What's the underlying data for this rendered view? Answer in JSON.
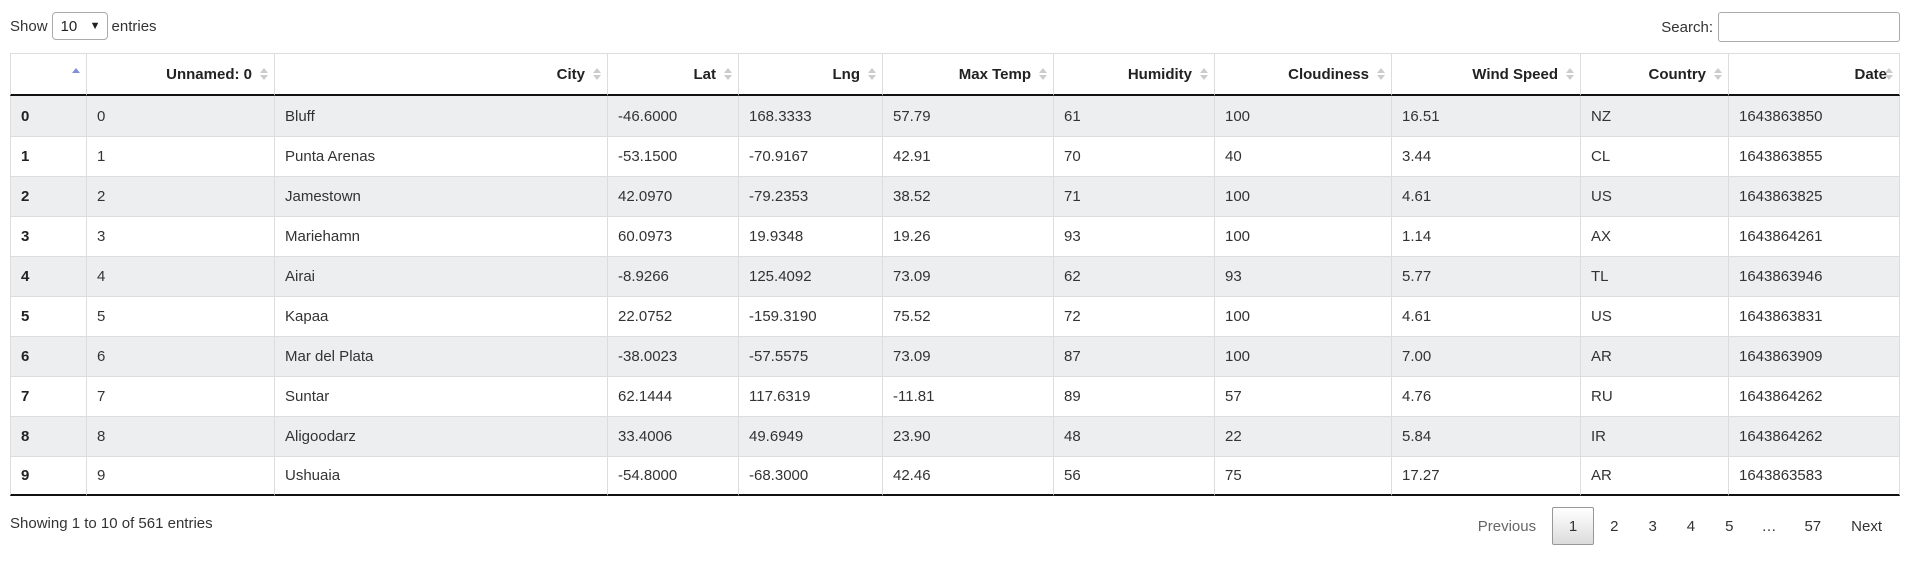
{
  "length_control": {
    "prefix": "Show",
    "selected": "10",
    "suffix": "entries"
  },
  "search": {
    "label": "Search:",
    "value": "",
    "placeholder": ""
  },
  "table": {
    "columns": [
      "",
      "Unnamed: 0",
      "City",
      "Lat",
      "Lng",
      "Max Temp",
      "Humidity",
      "Cloudiness",
      "Wind Speed",
      "Country",
      "Date"
    ],
    "sorted_column": 0,
    "sort_direction": "ascending",
    "rows": [
      [
        "0",
        "0",
        "Bluff",
        "-46.6000",
        "168.3333",
        "57.79",
        "61",
        "100",
        "16.51",
        "NZ",
        "1643863850"
      ],
      [
        "1",
        "1",
        "Punta Arenas",
        "-53.1500",
        "-70.9167",
        "42.91",
        "70",
        "40",
        "3.44",
        "CL",
        "1643863855"
      ],
      [
        "2",
        "2",
        "Jamestown",
        "42.0970",
        "-79.2353",
        "38.52",
        "71",
        "100",
        "4.61",
        "US",
        "1643863825"
      ],
      [
        "3",
        "3",
        "Mariehamn",
        "60.0973",
        "19.9348",
        "19.26",
        "93",
        "100",
        "1.14",
        "AX",
        "1643864261"
      ],
      [
        "4",
        "4",
        "Airai",
        "-8.9266",
        "125.4092",
        "73.09",
        "62",
        "93",
        "5.77",
        "TL",
        "1643863946"
      ],
      [
        "5",
        "5",
        "Kapaa",
        "22.0752",
        "-159.3190",
        "75.52",
        "72",
        "100",
        "4.61",
        "US",
        "1643863831"
      ],
      [
        "6",
        "6",
        "Mar del Plata",
        "-38.0023",
        "-57.5575",
        "73.09",
        "87",
        "100",
        "7.00",
        "AR",
        "1643863909"
      ],
      [
        "7",
        "7",
        "Suntar",
        "62.1444",
        "117.6319",
        "-11.81",
        "89",
        "57",
        "4.76",
        "RU",
        "1643864262"
      ],
      [
        "8",
        "8",
        "Aligoodarz",
        "33.4006",
        "49.6949",
        "23.90",
        "48",
        "22",
        "5.84",
        "IR",
        "1643864262"
      ],
      [
        "9",
        "9",
        "Ushuaia",
        "-54.8000",
        "-68.3000",
        "42.46",
        "56",
        "75",
        "17.27",
        "AR",
        "1643863583"
      ]
    ]
  },
  "info": "Showing 1 to 10 of 561 entries",
  "pagination": {
    "previous": "Previous",
    "pages": [
      "1",
      "2",
      "3",
      "4",
      "5",
      "…",
      "57"
    ],
    "current": "1",
    "next": "Next"
  },
  "colors": {
    "odd_row": "#eceeef",
    "border": "#dddddd",
    "sort_active": "#7f8fd8"
  }
}
